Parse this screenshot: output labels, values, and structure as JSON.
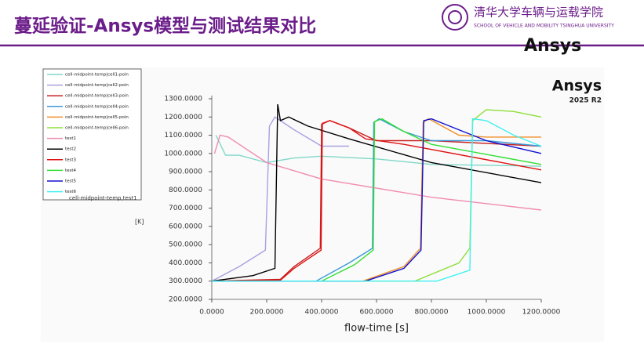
{
  "slide": {
    "title": "蔓延验证-Ansys模型与测试结果对比",
    "university": "清华大学车辆与运载学院",
    "school": "SCHOOL OF VEHICLE AND MOBILITY TSINGHUA UNIVERSITY",
    "logo": "Ansys"
  },
  "chart_data": {
    "type": "line",
    "brand": "Ansys",
    "version": "2025 R2",
    "legend_title": "cell-midpoint-temp,test1",
    "ylabel": "[K]",
    "xlabel": "flow-time [s]",
    "xlim": [
      0,
      1200
    ],
    "ylim": [
      200,
      1300
    ],
    "xticks": [
      {
        "value": 0,
        "label": "0.0000"
      },
      {
        "value": 200,
        "label": "200.0000"
      },
      {
        "value": 400,
        "label": "400.0000"
      },
      {
        "value": 600,
        "label": "600.0000"
      },
      {
        "value": 800,
        "label": "800.0000"
      },
      {
        "value": 1000,
        "label": "1000.0000"
      },
      {
        "value": 1200,
        "label": "1200.0000"
      }
    ],
    "yticks": [
      {
        "value": 200,
        "label": "200.0000"
      },
      {
        "value": 300,
        "label": "300.0000"
      },
      {
        "value": 400,
        "label": "400.0000"
      },
      {
        "value": 500,
        "label": "500.0000"
      },
      {
        "value": 600,
        "label": "600.0000"
      },
      {
        "value": 700,
        "label": "700.0000"
      },
      {
        "value": 800,
        "label": "800.0000"
      },
      {
        "value": 900,
        "label": "900.0000"
      },
      {
        "value": 1000,
        "label": "1000.0000"
      },
      {
        "value": 1100,
        "label": "1100.0000"
      },
      {
        "value": 1200,
        "label": "1200.0000"
      },
      {
        "value": 1300,
        "label": "1300.0000"
      }
    ],
    "series": [
      {
        "name": "cell-midpoint-temp|cell1-poin",
        "color": "#7fd8c8",
        "x": [
          15,
          50,
          100,
          200,
          300,
          400,
          600,
          800,
          1000,
          1200
        ],
        "values": [
          1100,
          990,
          990,
          950,
          975,
          985,
          970,
          940,
          935,
          930
        ]
      },
      {
        "name": "cell-midpoint-temp|cell2-poin",
        "color": "#a9a0e0",
        "x": [
          0,
          100,
          195,
          210,
          230,
          300,
          400,
          500
        ],
        "values": [
          300,
          380,
          470,
          1150,
          1200,
          1130,
          1040,
          1040
        ]
      },
      {
        "name": "cell-midpoint-temp|cell3-poin",
        "color": "#c82020",
        "x": [
          0,
          250,
          300,
          395,
          400,
          430,
          500,
          600,
          800,
          1200
        ],
        "values": [
          300,
          310,
          380,
          480,
          1160,
          1180,
          1140,
          1070,
          1070,
          1040
        ]
      },
      {
        "name": "cell-midpoint-temp|cell4-poin",
        "color": "#3a9ad9",
        "x": [
          0,
          380,
          500,
          585,
          590,
          610,
          700,
          800,
          1000,
          1200
        ],
        "values": [
          300,
          300,
          400,
          480,
          1170,
          1190,
          1120,
          1070,
          1070,
          1040
        ]
      },
      {
        "name": "cell-midpoint-temp|cell5-poin",
        "color": "#f0902a",
        "x": [
          0,
          550,
          700,
          760,
          770,
          790,
          900,
          1000,
          1200
        ],
        "values": [
          300,
          300,
          380,
          480,
          1170,
          1190,
          1100,
          1090,
          1090
        ]
      },
      {
        "name": "cell-midpoint-temp|cell6-poin",
        "color": "#8ee03a",
        "x": [
          0,
          740,
          900,
          940,
          950,
          1000,
          1100,
          1200
        ],
        "values": [
          300,
          300,
          400,
          480,
          1180,
          1240,
          1230,
          1200
        ]
      },
      {
        "name": "test1",
        "color": "#f08cb0",
        "x": [
          10,
          30,
          60,
          200,
          400,
          800,
          1200
        ],
        "values": [
          1000,
          1100,
          1090,
          950,
          860,
          760,
          690
        ]
      },
      {
        "name": "test2",
        "color": "#000000",
        "x": [
          0,
          150,
          230,
          240,
          250,
          280,
          350,
          500,
          800,
          1200
        ],
        "values": [
          300,
          330,
          370,
          1270,
          1180,
          1200,
          1150,
          1080,
          950,
          840
        ]
      },
      {
        "name": "test3",
        "color": "#e01010",
        "x": [
          0,
          250,
          300,
          398,
          403,
          430,
          500,
          560,
          700,
          1200
        ],
        "values": [
          300,
          305,
          370,
          470,
          1165,
          1180,
          1140,
          1080,
          1050,
          910
        ]
      },
      {
        "name": "test4",
        "color": "#30e030",
        "x": [
          0,
          400,
          520,
          588,
          593,
          620,
          700,
          800,
          1200
        ],
        "values": [
          300,
          300,
          390,
          470,
          1175,
          1190,
          1120,
          1050,
          940
        ]
      },
      {
        "name": "test5",
        "color": "#1010d0",
        "x": [
          0,
          560,
          700,
          762,
          772,
          800,
          900,
          1000,
          1200
        ],
        "values": [
          300,
          300,
          370,
          470,
          1180,
          1190,
          1130,
          1070,
          1000
        ]
      },
      {
        "name": "test6",
        "color": "#40f0f0",
        "x": [
          0,
          820,
          940,
          950,
          1000,
          1100,
          1200
        ],
        "values": [
          300,
          300,
          360,
          1190,
          1180,
          1100,
          1040
        ]
      }
    ]
  }
}
